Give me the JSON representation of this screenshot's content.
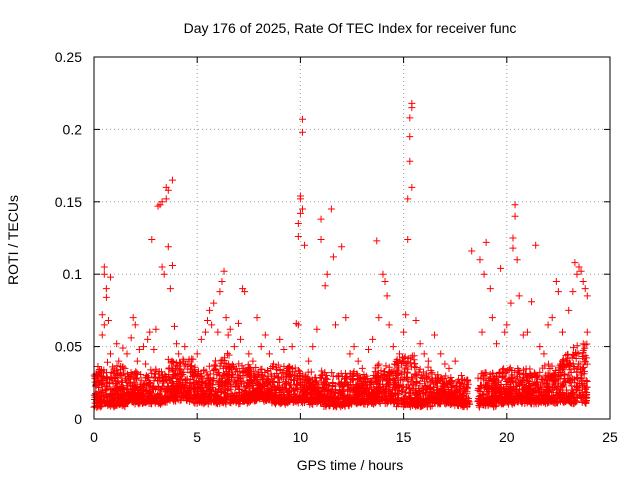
{
  "chart_data": {
    "type": "scatter",
    "title": "Day 176 of 2025, Rate Of TEC Index for receiver func",
    "xlabel": "GPS time / hours",
    "ylabel": "ROTI / TECUs",
    "xlim": [
      0,
      25
    ],
    "ylim": [
      0,
      0.25
    ],
    "xticks": [
      0,
      5,
      10,
      15,
      20,
      25
    ],
    "xtick_labels": [
      "0",
      "5",
      "10",
      "15",
      "20",
      "25"
    ],
    "yticks": [
      0,
      0.05,
      0.1,
      0.15,
      0.2,
      0.25
    ],
    "ytick_labels": [
      "0",
      "0.05",
      "0.1",
      "0.15",
      "0.2",
      "0.25"
    ],
    "grid": true,
    "marker": "plus",
    "series": [
      {
        "color": "#ff0000",
        "points": [
          [
            0.1,
            0.024
          ],
          [
            0.2,
            0.031
          ],
          [
            0.3,
            0.018
          ],
          [
            0.4,
            0.058
          ],
          [
            0.4,
            0.072
          ],
          [
            0.5,
            0.065
          ],
          [
            0.5,
            0.1
          ],
          [
            0.5,
            0.105
          ],
          [
            0.6,
            0.09
          ],
          [
            0.6,
            0.084
          ],
          [
            0.7,
            0.068
          ],
          [
            0.8,
            0.045
          ],
          [
            0.8,
            0.098
          ],
          [
            0.9,
            0.036
          ],
          [
            1.0,
            0.028
          ],
          [
            1.1,
            0.052
          ],
          [
            1.2,
            0.04
          ],
          [
            1.3,
            0.03
          ],
          [
            1.4,
            0.049
          ],
          [
            1.5,
            0.035
          ],
          [
            1.6,
            0.045
          ],
          [
            1.8,
            0.056
          ],
          [
            1.9,
            0.07
          ],
          [
            2.0,
            0.065
          ],
          [
            2.1,
            0.04
          ],
          [
            2.2,
            0.048
          ],
          [
            2.4,
            0.05
          ],
          [
            2.5,
            0.038
          ],
          [
            2.6,
            0.055
          ],
          [
            2.7,
            0.06
          ],
          [
            2.8,
            0.124
          ],
          [
            2.9,
            0.048
          ],
          [
            3.0,
            0.062
          ],
          [
            3.1,
            0.147
          ],
          [
            3.2,
            0.148
          ],
          [
            3.3,
            0.15
          ],
          [
            3.3,
            0.105
          ],
          [
            3.4,
            0.1
          ],
          [
            3.5,
            0.152
          ],
          [
            3.5,
            0.16
          ],
          [
            3.6,
            0.158
          ],
          [
            3.6,
            0.119
          ],
          [
            3.7,
            0.09
          ],
          [
            3.8,
            0.165
          ],
          [
            3.8,
            0.106
          ],
          [
            3.9,
            0.064
          ],
          [
            4.0,
            0.052
          ],
          [
            4.1,
            0.045
          ],
          [
            4.2,
            0.034
          ],
          [
            4.4,
            0.05
          ],
          [
            4.6,
            0.04
          ],
          [
            4.8,
            0.032
          ],
          [
            5.0,
            0.045
          ],
          [
            5.2,
            0.055
          ],
          [
            5.4,
            0.06
          ],
          [
            5.5,
            0.068
          ],
          [
            5.6,
            0.075
          ],
          [
            5.7,
            0.065
          ],
          [
            5.8,
            0.08
          ],
          [
            6.0,
            0.06
          ],
          [
            6.1,
            0.088
          ],
          [
            6.2,
            0.095
          ],
          [
            6.3,
            0.102
          ],
          [
            6.4,
            0.07
          ],
          [
            6.5,
            0.058
          ],
          [
            6.6,
            0.062
          ],
          [
            6.8,
            0.05
          ],
          [
            7.0,
            0.066
          ],
          [
            7.1,
            0.055
          ],
          [
            7.2,
            0.09
          ],
          [
            7.3,
            0.088
          ],
          [
            7.5,
            0.045
          ],
          [
            7.7,
            0.04
          ],
          [
            7.9,
            0.07
          ],
          [
            8.1,
            0.05
          ],
          [
            8.3,
            0.058
          ],
          [
            8.5,
            0.045
          ],
          [
            8.7,
            0.038
          ],
          [
            9.0,
            0.055
          ],
          [
            9.2,
            0.048
          ],
          [
            9.4,
            0.035
          ],
          [
            9.6,
            0.05
          ],
          [
            9.8,
            0.066
          ],
          [
            9.9,
            0.065
          ],
          [
            9.9,
            0.135
          ],
          [
            9.9,
            0.126
          ],
          [
            10.0,
            0.142
          ],
          [
            10.0,
            0.152
          ],
          [
            10.0,
            0.154
          ],
          [
            10.1,
            0.207
          ],
          [
            10.1,
            0.198
          ],
          [
            10.1,
            0.145
          ],
          [
            10.2,
            0.12
          ],
          [
            10.4,
            0.04
          ],
          [
            10.6,
            0.05
          ],
          [
            10.8,
            0.062
          ],
          [
            11.0,
            0.138
          ],
          [
            11.0,
            0.124
          ],
          [
            11.2,
            0.092
          ],
          [
            11.3,
            0.1
          ],
          [
            11.5,
            0.145
          ],
          [
            11.6,
            0.112
          ],
          [
            11.7,
            0.065
          ],
          [
            12.0,
            0.119
          ],
          [
            12.2,
            0.07
          ],
          [
            12.4,
            0.045
          ],
          [
            12.6,
            0.05
          ],
          [
            12.8,
            0.04
          ],
          [
            13.0,
            0.035
          ],
          [
            13.3,
            0.048
          ],
          [
            13.5,
            0.055
          ],
          [
            13.7,
            0.123
          ],
          [
            13.8,
            0.07
          ],
          [
            14.0,
            0.1
          ],
          [
            14.1,
            0.095
          ],
          [
            14.2,
            0.085
          ],
          [
            14.3,
            0.065
          ],
          [
            14.5,
            0.05
          ],
          [
            14.8,
            0.045
          ],
          [
            15.0,
            0.06
          ],
          [
            15.1,
            0.072
          ],
          [
            15.2,
            0.124
          ],
          [
            15.2,
            0.152
          ],
          [
            15.3,
            0.178
          ],
          [
            15.3,
            0.195
          ],
          [
            15.3,
            0.208
          ],
          [
            15.4,
            0.215
          ],
          [
            15.4,
            0.218
          ],
          [
            15.4,
            0.16
          ],
          [
            15.6,
            0.068
          ],
          [
            15.8,
            0.052
          ],
          [
            16.0,
            0.045
          ],
          [
            16.2,
            0.04
          ],
          [
            16.5,
            0.058
          ],
          [
            16.8,
            0.045
          ],
          [
            17.0,
            0.038
          ],
          [
            17.2,
            0.035
          ],
          [
            17.5,
            0.04
          ],
          [
            17.8,
            0.03
          ],
          [
            18.0,
            0.02
          ],
          [
            18.3,
            0.116
          ],
          [
            18.7,
            0.11
          ],
          [
            18.8,
            0.06
          ],
          [
            18.9,
            0.1
          ],
          [
            19.0,
            0.122
          ],
          [
            19.2,
            0.09
          ],
          [
            19.3,
            0.07
          ],
          [
            19.5,
            0.052
          ],
          [
            19.7,
            0.104
          ],
          [
            19.9,
            0.06
          ],
          [
            20.0,
            0.065
          ],
          [
            20.2,
            0.08
          ],
          [
            20.3,
            0.118
          ],
          [
            20.3,
            0.125
          ],
          [
            20.4,
            0.148
          ],
          [
            20.4,
            0.14
          ],
          [
            20.5,
            0.11
          ],
          [
            20.6,
            0.085
          ],
          [
            20.8,
            0.058
          ],
          [
            21.0,
            0.06
          ],
          [
            21.2,
            0.081
          ],
          [
            21.4,
            0.12
          ],
          [
            21.6,
            0.05
          ],
          [
            21.8,
            0.045
          ],
          [
            22.0,
            0.065
          ],
          [
            22.2,
            0.07
          ],
          [
            22.4,
            0.095
          ],
          [
            22.5,
            0.088
          ],
          [
            22.7,
            0.06
          ],
          [
            23.0,
            0.075
          ],
          [
            23.2,
            0.088
          ],
          [
            23.3,
            0.108
          ],
          [
            23.4,
            0.1
          ],
          [
            23.5,
            0.105
          ],
          [
            23.6,
            0.102
          ],
          [
            23.7,
            0.095
          ],
          [
            23.8,
            0.09
          ],
          [
            23.9,
            0.085
          ],
          [
            23.9,
            0.06
          ]
        ]
      }
    ],
    "dense_bands": [
      [
        0.0,
        0.6,
        0.008,
        0.034
      ],
      [
        0.6,
        1.5,
        0.008,
        0.036
      ],
      [
        1.5,
        2.6,
        0.01,
        0.03
      ],
      [
        2.6,
        3.6,
        0.01,
        0.032
      ],
      [
        3.6,
        4.8,
        0.012,
        0.04
      ],
      [
        4.8,
        5.6,
        0.01,
        0.034
      ],
      [
        5.6,
        6.6,
        0.01,
        0.042
      ],
      [
        6.6,
        7.6,
        0.01,
        0.036
      ],
      [
        7.6,
        8.6,
        0.012,
        0.032
      ],
      [
        8.6,
        9.8,
        0.01,
        0.034
      ],
      [
        9.8,
        11.0,
        0.01,
        0.03
      ],
      [
        11.0,
        12.4,
        0.008,
        0.03
      ],
      [
        12.4,
        13.6,
        0.01,
        0.03
      ],
      [
        13.6,
        14.6,
        0.01,
        0.036
      ],
      [
        14.6,
        15.6,
        0.008,
        0.04
      ],
      [
        15.6,
        16.4,
        0.008,
        0.034
      ],
      [
        16.4,
        17.4,
        0.01,
        0.028
      ],
      [
        17.4,
        18.2,
        0.008,
        0.024
      ],
      [
        18.6,
        19.6,
        0.008,
        0.03
      ],
      [
        19.6,
        20.6,
        0.01,
        0.034
      ],
      [
        20.6,
        21.6,
        0.01,
        0.032
      ],
      [
        21.6,
        22.6,
        0.01,
        0.036
      ],
      [
        22.6,
        23.2,
        0.01,
        0.042
      ],
      [
        23.2,
        23.9,
        0.01,
        0.05
      ]
    ]
  }
}
